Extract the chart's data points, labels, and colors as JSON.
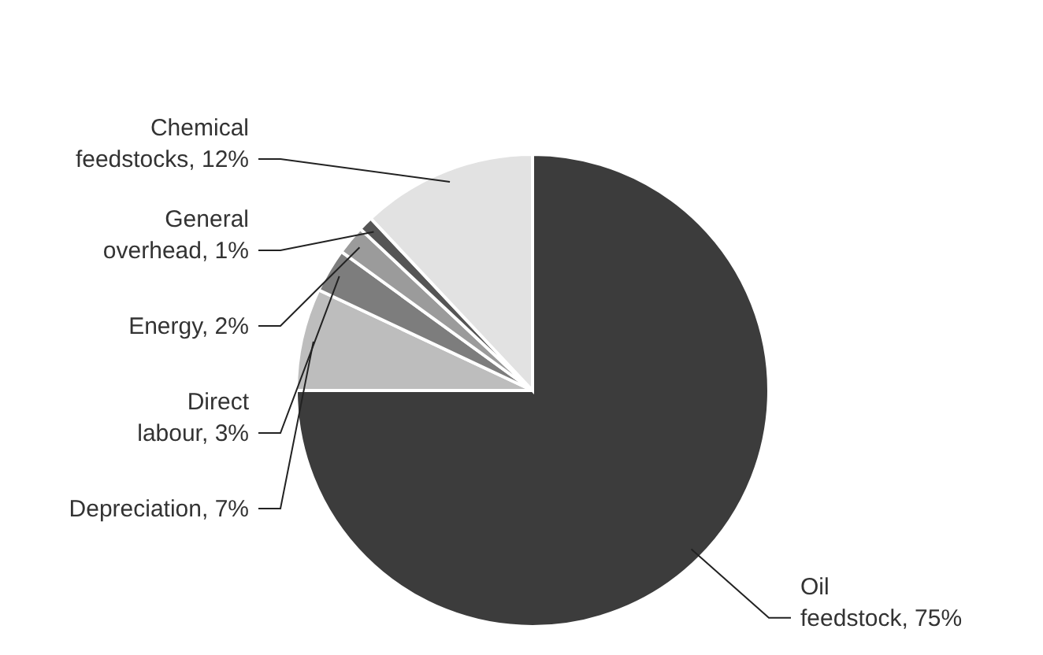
{
  "chart_data": {
    "type": "pie",
    "categories": [
      "Oil feedstock",
      "Depreciation",
      "Direct labour",
      "Energy",
      "General overhead",
      "Chemical feedstocks"
    ],
    "values": [
      75,
      7,
      3,
      2,
      1,
      12
    ],
    "value_labels": [
      "75%",
      "7%",
      "3%",
      "2%",
      "1%",
      "12%"
    ],
    "colors": [
      "#3c3c3c",
      "#bdbdbd",
      "#7d7d7d",
      "#9b9b9b",
      "#555555",
      "#e2e2e2"
    ]
  }
}
